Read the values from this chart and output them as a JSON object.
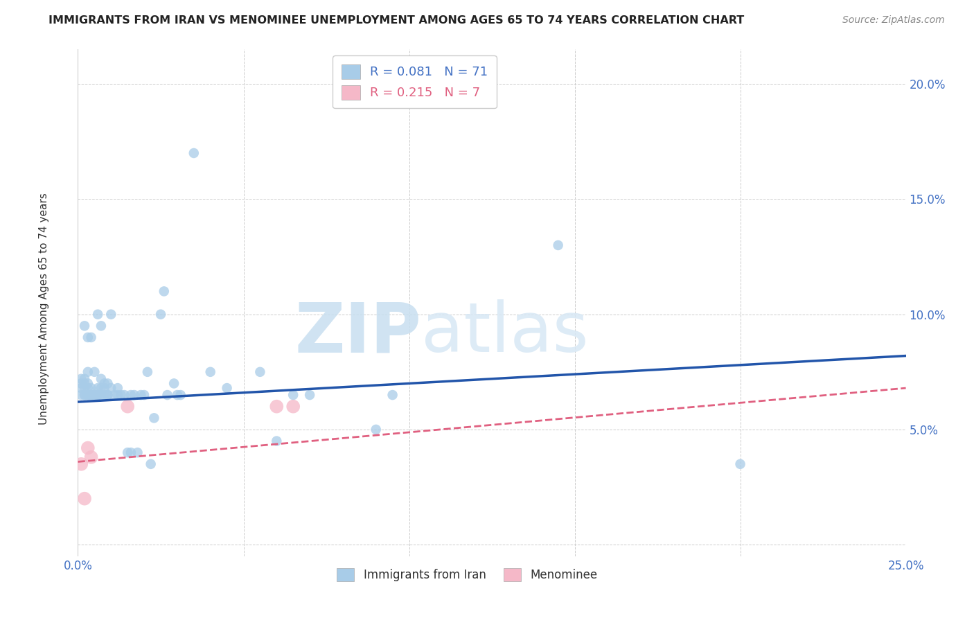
{
  "title": "IMMIGRANTS FROM IRAN VS MENOMINEE UNEMPLOYMENT AMONG AGES 65 TO 74 YEARS CORRELATION CHART",
  "source": "Source: ZipAtlas.com",
  "ylabel": "Unemployment Among Ages 65 to 74 years",
  "xlim": [
    0,
    0.25
  ],
  "ylim": [
    -0.005,
    0.215
  ],
  "xticks": [
    0.0,
    0.25
  ],
  "xticks_minor": [
    0.05,
    0.1,
    0.15,
    0.2
  ],
  "yticks": [
    0.05,
    0.1,
    0.15,
    0.2
  ],
  "legend1_R": "0.081",
  "legend1_N": "71",
  "legend2_R": "0.215",
  "legend2_N": "7",
  "legend_label1": "Immigrants from Iran",
  "legend_label2": "Menominee",
  "blue_color": "#a8cce8",
  "pink_color": "#f5b8c8",
  "line_blue": "#2255aa",
  "line_pink": "#e06080",
  "watermark_zip": "ZIP",
  "watermark_atlas": "atlas",
  "blue_x": [
    0.001,
    0.001,
    0.001,
    0.001,
    0.002,
    0.002,
    0.002,
    0.002,
    0.002,
    0.002,
    0.003,
    0.003,
    0.003,
    0.003,
    0.003,
    0.003,
    0.004,
    0.004,
    0.004,
    0.004,
    0.005,
    0.005,
    0.005,
    0.006,
    0.006,
    0.006,
    0.006,
    0.007,
    0.007,
    0.007,
    0.007,
    0.008,
    0.008,
    0.008,
    0.009,
    0.009,
    0.009,
    0.01,
    0.01,
    0.011,
    0.012,
    0.012,
    0.013,
    0.014,
    0.015,
    0.016,
    0.016,
    0.017,
    0.018,
    0.019,
    0.02,
    0.021,
    0.022,
    0.023,
    0.025,
    0.026,
    0.027,
    0.029,
    0.03,
    0.031,
    0.035,
    0.04,
    0.045,
    0.055,
    0.06,
    0.065,
    0.07,
    0.09,
    0.095,
    0.145,
    0.2
  ],
  "blue_y": [
    0.065,
    0.068,
    0.07,
    0.072,
    0.065,
    0.065,
    0.068,
    0.07,
    0.072,
    0.095,
    0.065,
    0.065,
    0.068,
    0.07,
    0.075,
    0.09,
    0.065,
    0.065,
    0.068,
    0.09,
    0.065,
    0.065,
    0.075,
    0.065,
    0.065,
    0.068,
    0.1,
    0.065,
    0.068,
    0.072,
    0.095,
    0.065,
    0.068,
    0.07,
    0.065,
    0.065,
    0.07,
    0.068,
    0.1,
    0.065,
    0.065,
    0.068,
    0.065,
    0.065,
    0.04,
    0.065,
    0.04,
    0.065,
    0.04,
    0.065,
    0.065,
    0.075,
    0.035,
    0.055,
    0.1,
    0.11,
    0.065,
    0.07,
    0.065,
    0.065,
    0.17,
    0.075,
    0.068,
    0.075,
    0.045,
    0.065,
    0.065,
    0.05,
    0.065,
    0.13,
    0.035
  ],
  "pink_x": [
    0.001,
    0.002,
    0.003,
    0.004,
    0.015,
    0.06,
    0.065
  ],
  "pink_y": [
    0.035,
    0.02,
    0.042,
    0.038,
    0.06,
    0.06,
    0.06
  ],
  "blue_line_x": [
    0.0,
    0.25
  ],
  "blue_line_y": [
    0.062,
    0.082
  ],
  "pink_line_x": [
    0.0,
    0.25
  ],
  "pink_line_y": [
    0.036,
    0.068
  ]
}
